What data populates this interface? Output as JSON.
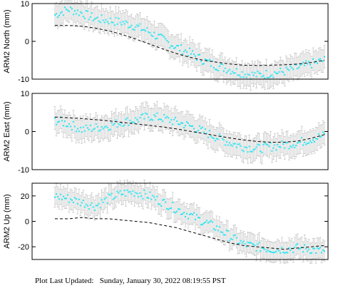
{
  "footer": {
    "label": "Plot Last Updated:",
    "timestamp": "Sunday, January 30, 2022 08:19:55 PST"
  },
  "colors": {
    "data": "#22e5f0",
    "error_bars": "#c8c8c8",
    "model": "#000000",
    "frame": "#000000"
  },
  "chart_data": [
    {
      "type": "scatter",
      "ylabel": "ARM2 North (mm)",
      "xlim": [
        0,
        100
      ],
      "ylim": [
        -10,
        10
      ],
      "yticks": [
        -10,
        0,
        10
      ],
      "error_bar_half_width": 3,
      "grid": false,
      "series": [
        {
          "kind": "observations",
          "x": [
            0,
            5,
            10,
            15,
            20,
            25,
            30,
            35,
            40,
            45,
            50,
            55,
            60,
            65,
            70,
            75,
            80,
            85,
            90,
            95,
            100
          ],
          "y": [
            7,
            8.5,
            7.5,
            6,
            5.5,
            5,
            4,
            2.5,
            0.5,
            -1.5,
            -3,
            -5,
            -6.5,
            -7.5,
            -8.5,
            -9,
            -8.5,
            -8,
            -7,
            -6,
            -5
          ]
        },
        {
          "kind": "model",
          "x": [
            0,
            5,
            10,
            15,
            20,
            25,
            30,
            35,
            40,
            45,
            50,
            55,
            60,
            65,
            70,
            75,
            80,
            85,
            90,
            95,
            100
          ],
          "y": [
            4.2,
            4.2,
            4.0,
            3.5,
            2.8,
            1.8,
            0.6,
            -0.7,
            -2.0,
            -3.2,
            -4.2,
            -5.0,
            -5.5,
            -6.0,
            -6.3,
            -6.4,
            -6.3,
            -6.2,
            -6.0,
            -5.6,
            -5.0
          ]
        }
      ]
    },
    {
      "type": "scatter",
      "ylabel": "ARM2 East (mm)",
      "xlim": [
        0,
        100
      ],
      "ylim": [
        -10,
        10
      ],
      "yticks": [
        -10,
        0,
        10
      ],
      "error_bar_half_width": 3,
      "grid": false,
      "series": [
        {
          "kind": "observations",
          "x": [
            0,
            5,
            10,
            15,
            20,
            25,
            30,
            35,
            40,
            45,
            50,
            55,
            60,
            65,
            70,
            75,
            80,
            85,
            90,
            95,
            100
          ],
          "y": [
            3,
            2,
            0.5,
            1,
            1.5,
            2.5,
            3,
            4,
            3.5,
            2.5,
            1.5,
            0,
            -1.5,
            -3,
            -4,
            -4.5,
            -4,
            -3.5,
            -3,
            -2,
            -1
          ]
        },
        {
          "kind": "model",
          "x": [
            0,
            5,
            10,
            15,
            20,
            25,
            30,
            35,
            40,
            45,
            50,
            55,
            60,
            65,
            70,
            75,
            80,
            85,
            90,
            95,
            100
          ],
          "y": [
            3.8,
            3.6,
            3.4,
            3.1,
            2.8,
            2.4,
            2.0,
            1.6,
            1.2,
            0.7,
            0.1,
            -0.5,
            -1.1,
            -1.7,
            -2.2,
            -2.6,
            -2.8,
            -2.8,
            -2.5,
            -1.8,
            -0.8
          ]
        }
      ]
    },
    {
      "type": "scatter",
      "ylabel": "ARM2 Up (mm)",
      "xlim": [
        0,
        100
      ],
      "ylim": [
        -30,
        30
      ],
      "yticks": [
        -20,
        0,
        20
      ],
      "error_bar_half_width": 8,
      "grid": false,
      "series": [
        {
          "kind": "observations",
          "x": [
            0,
            5,
            10,
            15,
            20,
            25,
            30,
            35,
            40,
            45,
            50,
            55,
            60,
            65,
            70,
            75,
            80,
            85,
            90,
            95,
            100
          ],
          "y": [
            20,
            18,
            15,
            12,
            18,
            22,
            23,
            20,
            15,
            10,
            5,
            0,
            -5,
            -12,
            -18,
            -20,
            -22,
            -22,
            -21,
            -22,
            -24
          ]
        },
        {
          "kind": "model",
          "x": [
            0,
            5,
            10,
            15,
            20,
            25,
            30,
            35,
            40,
            45,
            50,
            55,
            60,
            65,
            70,
            75,
            80,
            85,
            90,
            95,
            100
          ],
          "y": [
            2,
            2,
            3,
            2,
            2,
            1,
            0,
            -1,
            -3,
            -5,
            -8,
            -11,
            -14,
            -17,
            -19,
            -20,
            -21,
            -22,
            -21,
            -20,
            -19
          ]
        }
      ]
    }
  ]
}
